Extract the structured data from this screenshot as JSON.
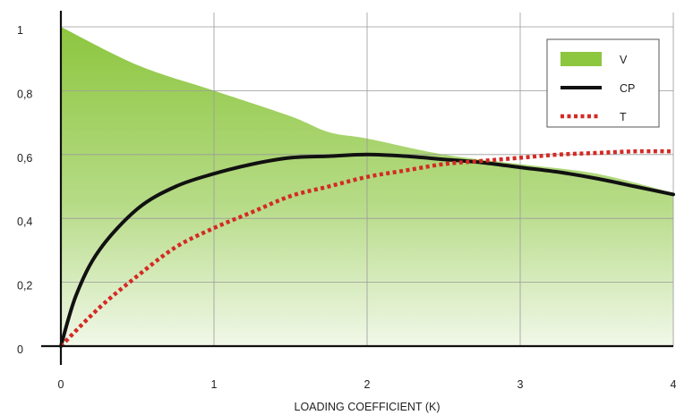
{
  "chart_data": {
    "type": "line",
    "title": "",
    "xlabel": "LOADING COEFFICIENT (K)",
    "ylabel": "",
    "xlim": [
      0,
      4
    ],
    "ylim": [
      0,
      1
    ],
    "grid": true,
    "legend_position": "top-right",
    "x_ticks": [
      "0",
      "1",
      "2",
      "3",
      "4"
    ],
    "y_ticks": [
      "0",
      "0,2",
      "0,4",
      "0,6",
      "0,8",
      "1"
    ],
    "series": [
      {
        "name": "V",
        "style": "area",
        "color": "#8dc63f",
        "x": [
          0,
          0.5,
          1,
          1.5,
          1.75,
          2,
          2.5,
          3,
          3.5,
          4
        ],
        "y": [
          1.0,
          0.88,
          0.8,
          0.72,
          0.67,
          0.65,
          0.6,
          0.57,
          0.54,
          0.48
        ]
      },
      {
        "name": "CP",
        "style": "solid",
        "color": "#111111",
        "x": [
          0,
          0.1,
          0.25,
          0.5,
          0.75,
          1,
          1.25,
          1.5,
          1.75,
          2,
          2.25,
          2.5,
          2.75,
          3,
          3.25,
          3.5,
          3.75,
          4
        ],
        "y": [
          0,
          0.16,
          0.3,
          0.43,
          0.5,
          0.54,
          0.57,
          0.59,
          0.595,
          0.6,
          0.595,
          0.585,
          0.575,
          0.56,
          0.545,
          0.525,
          0.5,
          0.475
        ]
      },
      {
        "name": "T",
        "style": "dotted",
        "color": "#d42a25",
        "x": [
          0,
          0.25,
          0.5,
          0.75,
          1,
          1.25,
          1.5,
          1.75,
          2,
          2.25,
          2.5,
          2.75,
          3,
          3.25,
          3.5,
          3.75,
          4
        ],
        "y": [
          0,
          0.12,
          0.22,
          0.31,
          0.37,
          0.42,
          0.47,
          0.5,
          0.53,
          0.55,
          0.57,
          0.58,
          0.59,
          0.6,
          0.605,
          0.61,
          0.61
        ]
      }
    ]
  }
}
